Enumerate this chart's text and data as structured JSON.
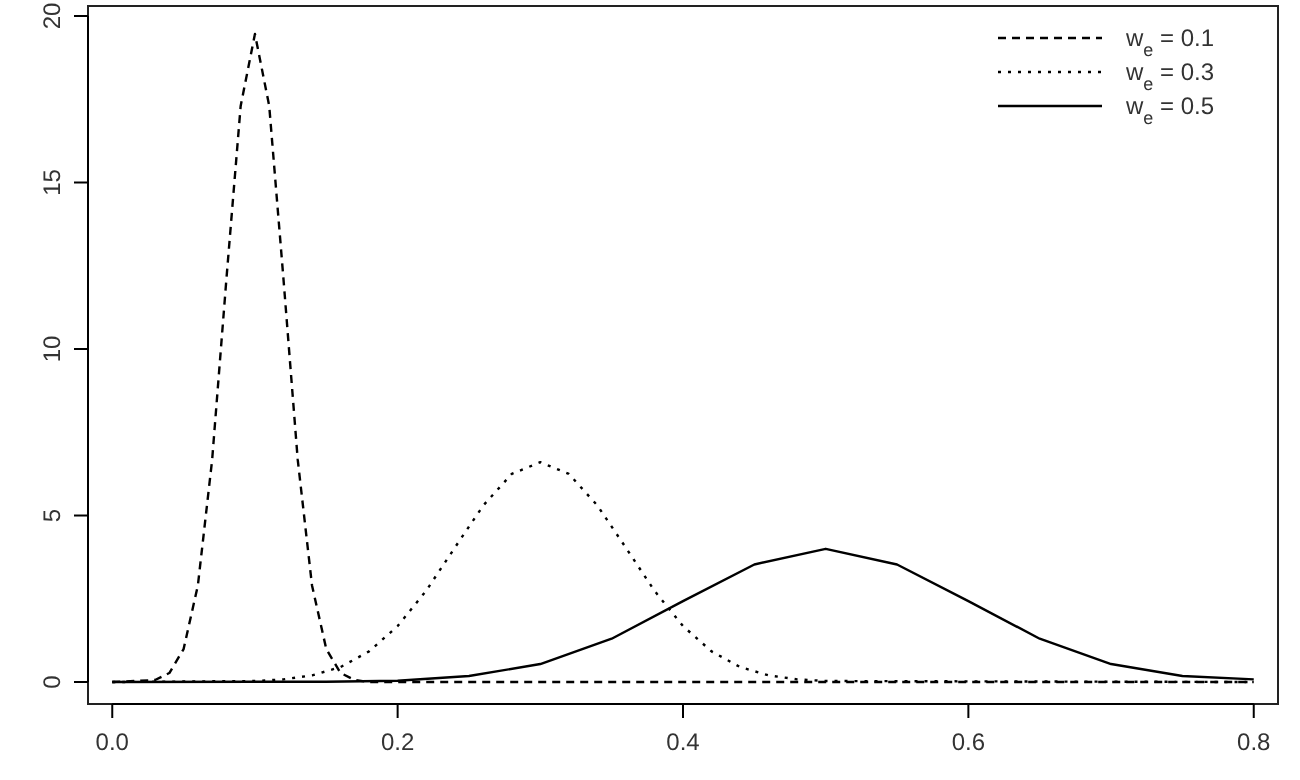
{
  "chart_data": {
    "type": "line",
    "xlim": [
      -0.017,
      0.817
    ],
    "ylim": [
      -0.66,
      20.3
    ],
    "xticks": [
      {
        "value": 0,
        "label": "0.0"
      },
      {
        "value": 0.2,
        "label": "0.2"
      },
      {
        "value": 0.4,
        "label": "0.4"
      },
      {
        "value": 0.6,
        "label": "0.6"
      },
      {
        "value": 0.8,
        "label": "0.8"
      }
    ],
    "yticks": [
      0,
      5,
      10,
      15,
      20
    ],
    "legend": "top right",
    "grid": false,
    "series": [
      {
        "name": "w$_{e}$ = 0.1",
        "color": "#000000",
        "line_style": "dashed",
        "x": [
          0,
          0.03,
          0.04,
          0.05,
          0.06,
          0.07,
          0.08,
          0.09,
          0.1,
          0.11,
          0.12,
          0.13,
          0.14,
          0.15,
          0.16,
          0.17,
          0.18,
          0.2,
          0.8
        ],
        "values": [
          0,
          0.06,
          0.27,
          0.99,
          2.9,
          6.67,
          12.1,
          17.3,
          19.46,
          17.3,
          12.1,
          6.67,
          2.9,
          0.99,
          0.27,
          0.06,
          0,
          0,
          0
        ]
      },
      {
        "name": "w$_{e}$ = 0.3",
        "color": "#000000",
        "line_style": "dotted",
        "x": [
          0,
          0.1,
          0.12,
          0.14,
          0.16,
          0.18,
          0.2,
          0.22,
          0.24,
          0.26,
          0.28,
          0.3,
          0.32,
          0.34,
          0.36,
          0.38,
          0.4,
          0.42,
          0.44,
          0.46,
          0.48,
          0.5,
          0.8
        ],
        "values": [
          0,
          0.03,
          0.08,
          0.2,
          0.45,
          0.92,
          1.68,
          2.74,
          4.03,
          5.3,
          6.25,
          6.6,
          6.25,
          5.3,
          4.03,
          2.74,
          1.68,
          0.92,
          0.45,
          0.2,
          0.08,
          0.03,
          0
        ]
      },
      {
        "name": "w$_{e}$ = 0.5",
        "color": "#000000",
        "line_style": "solid",
        "x": [
          0,
          0.15,
          0.2,
          0.25,
          0.3,
          0.35,
          0.4,
          0.45,
          0.5,
          0.55,
          0.6,
          0.65,
          0.7,
          0.75,
          0.8
        ],
        "values": [
          0,
          0.01,
          0.04,
          0.18,
          0.54,
          1.3,
          2.43,
          3.53,
          4.0,
          3.53,
          2.43,
          1.3,
          0.54,
          0.18,
          0.08
        ]
      }
    ]
  }
}
